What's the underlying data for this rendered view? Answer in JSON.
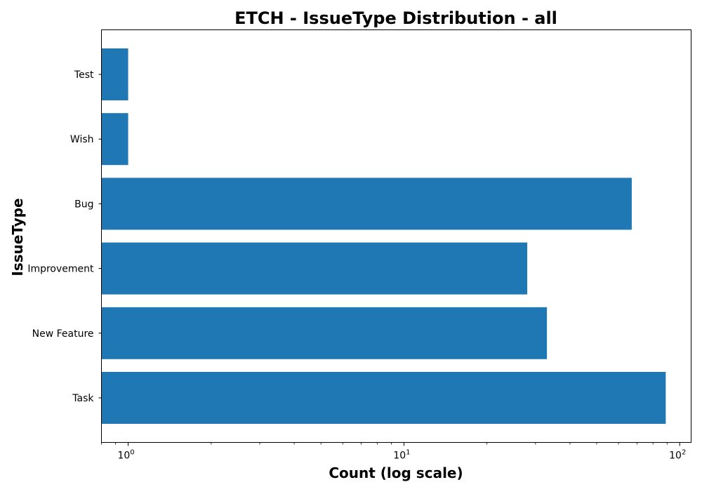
{
  "chart_data": {
    "type": "bar",
    "orientation": "horizontal",
    "title": "ETCH - IssueType Distribution - all",
    "xlabel": "Count (log scale)",
    "ylabel": "IssueType",
    "x_scale": "log",
    "xlim": [
      0.8,
      110
    ],
    "x_major_ticks": [
      {
        "value": 1,
        "base": "10",
        "exponent": "0"
      },
      {
        "value": 10,
        "base": "10",
        "exponent": "1"
      },
      {
        "value": 100,
        "base": "10",
        "exponent": "2"
      }
    ],
    "categories": [
      "Test",
      "Wish",
      "Bug",
      "Improvement",
      "New Feature",
      "Task"
    ],
    "values": [
      1,
      1,
      67,
      28,
      33,
      89
    ],
    "bar_color": "#1f77b4",
    "grid": false,
    "legend": "none"
  }
}
